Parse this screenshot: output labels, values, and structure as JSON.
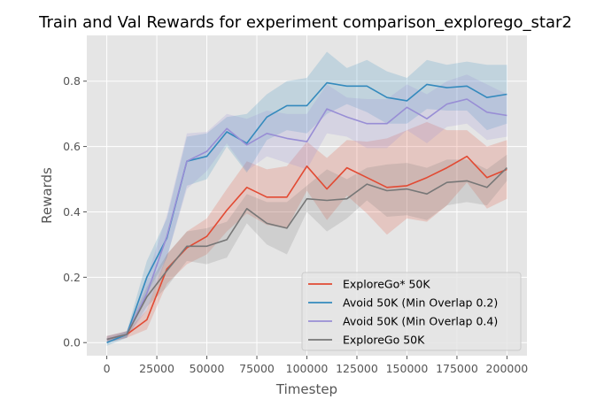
{
  "chart_data": {
    "type": "line",
    "title": "Train and Val Rewards for experiment comparison_explorego_star2",
    "xlabel": "Timestep",
    "ylabel": "Rewards",
    "xlim": [
      -10000,
      210000
    ],
    "ylim": [
      -0.04,
      0.94
    ],
    "xticks": [
      0,
      25000,
      50000,
      75000,
      100000,
      125000,
      150000,
      175000,
      200000
    ],
    "yticks": [
      0.0,
      0.2,
      0.4,
      0.6,
      0.8
    ],
    "ytick_labels": [
      "0.0",
      "0.2",
      "0.4",
      "0.6",
      "0.8"
    ],
    "grid": true,
    "legend_position": "lower-right",
    "x": [
      0,
      10000,
      20000,
      30000,
      40000,
      50000,
      60000,
      70000,
      80000,
      90000,
      100000,
      110000,
      120000,
      130000,
      140000,
      150000,
      160000,
      170000,
      180000,
      190000,
      200000
    ],
    "series": [
      {
        "name": "ExploreGo* 50K",
        "color": "#E24A33",
        "values": [
          0.01,
          0.025,
          0.07,
          0.225,
          0.29,
          0.325,
          0.405,
          0.475,
          0.445,
          0.445,
          0.54,
          0.47,
          0.535,
          0.505,
          0.475,
          0.48,
          0.505,
          0.535,
          0.57,
          0.505,
          0.53
        ],
        "upper": [
          0.02,
          0.035,
          0.1,
          0.27,
          0.34,
          0.38,
          0.47,
          0.555,
          0.53,
          0.54,
          0.615,
          0.565,
          0.62,
          0.615,
          0.625,
          0.65,
          0.675,
          0.65,
          0.65,
          0.6,
          0.62
        ],
        "lower": [
          0.0,
          0.015,
          0.04,
          0.18,
          0.24,
          0.27,
          0.34,
          0.395,
          0.36,
          0.35,
          0.465,
          0.375,
          0.45,
          0.395,
          0.33,
          0.38,
          0.37,
          0.42,
          0.49,
          0.41,
          0.44
        ]
      },
      {
        "name": "Avoid 50K (Min Overlap 0.2)",
        "color": "#348ABD",
        "values": [
          0.0,
          0.025,
          0.2,
          0.32,
          0.555,
          0.57,
          0.645,
          0.61,
          0.69,
          0.725,
          0.725,
          0.795,
          0.785,
          0.785,
          0.75,
          0.74,
          0.79,
          0.78,
          0.785,
          0.75,
          0.76
        ],
        "upper": [
          0.01,
          0.035,
          0.25,
          0.38,
          0.63,
          0.64,
          0.69,
          0.7,
          0.76,
          0.8,
          0.81,
          0.89,
          0.84,
          0.865,
          0.83,
          0.81,
          0.865,
          0.85,
          0.86,
          0.85,
          0.85
        ],
        "lower": [
          -0.01,
          0.015,
          0.15,
          0.26,
          0.48,
          0.5,
          0.6,
          0.52,
          0.62,
          0.65,
          0.64,
          0.7,
          0.73,
          0.705,
          0.67,
          0.67,
          0.715,
          0.71,
          0.71,
          0.65,
          0.67
        ]
      },
      {
        "name": "Avoid 50K (Min Overlap 0.4)",
        "color": "#988ED5",
        "values": [
          0.01,
          0.025,
          0.15,
          0.325,
          0.555,
          0.585,
          0.655,
          0.605,
          0.64,
          0.625,
          0.615,
          0.715,
          0.69,
          0.67,
          0.67,
          0.72,
          0.685,
          0.73,
          0.745,
          0.705,
          0.695
        ],
        "upper": [
          0.02,
          0.035,
          0.2,
          0.39,
          0.64,
          0.645,
          0.7,
          0.685,
          0.71,
          0.7,
          0.7,
          0.79,
          0.75,
          0.745,
          0.745,
          0.79,
          0.76,
          0.8,
          0.82,
          0.79,
          0.76
        ],
        "lower": [
          0.0,
          0.015,
          0.1,
          0.26,
          0.47,
          0.525,
          0.61,
          0.525,
          0.57,
          0.55,
          0.53,
          0.64,
          0.63,
          0.595,
          0.595,
          0.65,
          0.61,
          0.66,
          0.67,
          0.62,
          0.63
        ]
      },
      {
        "name": "ExploreGo 50K",
        "color": "#777777",
        "values": [
          0.01,
          0.025,
          0.14,
          0.22,
          0.295,
          0.295,
          0.315,
          0.41,
          0.365,
          0.35,
          0.44,
          0.435,
          0.44,
          0.485,
          0.465,
          0.47,
          0.455,
          0.49,
          0.495,
          0.475,
          0.535
        ],
        "upper": [
          0.02,
          0.035,
          0.17,
          0.27,
          0.34,
          0.35,
          0.37,
          0.455,
          0.43,
          0.43,
          0.48,
          0.53,
          0.5,
          0.535,
          0.545,
          0.55,
          0.535,
          0.56,
          0.56,
          0.53,
          0.575
        ],
        "lower": [
          0.0,
          0.015,
          0.11,
          0.17,
          0.25,
          0.24,
          0.26,
          0.365,
          0.3,
          0.27,
          0.4,
          0.34,
          0.38,
          0.435,
          0.385,
          0.39,
          0.375,
          0.42,
          0.43,
          0.42,
          0.495
        ]
      }
    ]
  }
}
